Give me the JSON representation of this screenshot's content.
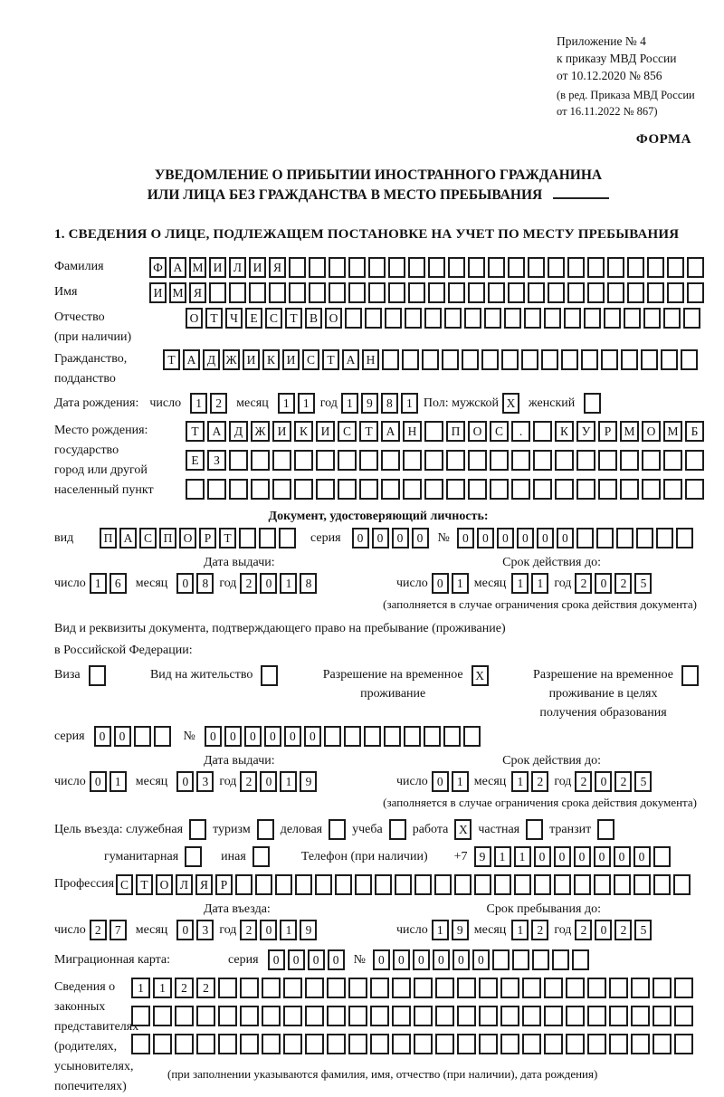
{
  "meta": {
    "annex_lines": [
      "Приложение № 4",
      "к приказу МВД России",
      "от 10.12.2020 № 856"
    ],
    "edition_lines": [
      "(в ред. Приказа МВД России",
      "от 16.11.2022 № 867)"
    ],
    "forma": "ФОРМА"
  },
  "title": {
    "line1": "УВЕДОМЛЕНИЕ О ПРИБЫТИИ ИНОСТРАННОГО ГРАЖДАНИНА",
    "line2": "ИЛИ ЛИЦА БЕЗ ГРАЖДАНСТВА В МЕСТО ПРЕБЫВАНИЯ"
  },
  "section1_heading": "1. СВЕДЕНИЯ О ЛИЦЕ, ПОДЛЕЖАЩЕМ ПОСТАНОВКЕ НА УЧЕТ ПО МЕСТУ ПРЕБЫВАНИЯ",
  "labels": {
    "surname": "Фамилия",
    "name": "Имя",
    "patronymic": "Отчество",
    "patronymic2": "(при наличии)",
    "citizenship1": "Гражданство,",
    "citizenship2": "подданство",
    "birth_date": "Дата рождения:",
    "day": "число",
    "month": "месяц",
    "year": "год",
    "sex_male": "Пол: мужской",
    "sex_female": "женский",
    "birth_place": [
      "Место рождения:",
      "государство",
      "город или другой",
      "населенный пункт"
    ],
    "identity_doc": "Документ, удостоверяющий личность:",
    "doc_type": "вид",
    "series": "серия",
    "number": "№",
    "issue_date": "Дата выдачи:",
    "valid_until": "Срок действия до:",
    "valid_note": "(заполняется в случае ограничения срока действия документа)",
    "residence_line1": "Вид и реквизиты документа, подтверждающего право на пребывание (проживание)",
    "residence_line2": "в Российской Федерации:",
    "visa": "Виза",
    "residence_permit": "Вид на жительство",
    "temp_permit": [
      "Разрешение на временное",
      "проживание"
    ],
    "temp_permit_edu": [
      "Разрешение на временное",
      "проживание в целях",
      "получения образования"
    ],
    "purpose": "Цель въезда: служебная",
    "tourism": "туризм",
    "business": "деловая",
    "study": "учеба",
    "work": "работа",
    "private": "частная",
    "transit": "транзит",
    "humanitarian": "гуманитарная",
    "other": "иная",
    "phone": "Телефон (при наличии)",
    "phone_prefix": "+7",
    "profession": "Профессия",
    "entry_date": "Дата въезда:",
    "stay_until": "Срок пребывания до:",
    "migration_card": "Миграционная карта:",
    "representatives": [
      "Сведения о",
      "законных",
      "представителях",
      "(родителях,",
      "усыновителях,",
      "попечителях)"
    ],
    "representatives_note": "(при заполнении указываются фамилия, имя, отчество (при наличии), дата рождения)"
  },
  "cells": {
    "surname": [
      "Ф",
      "А",
      "М",
      "И",
      "Л",
      "И",
      "Я",
      "",
      "",
      "",
      "",
      "",
      "",
      "",
      "",
      "",
      "",
      "",
      "",
      "",
      "",
      "",
      "",
      "",
      "",
      "",
      "",
      ""
    ],
    "name": [
      "И",
      "М",
      "Я",
      "",
      "",
      "",
      "",
      "",
      "",
      "",
      "",
      "",
      "",
      "",
      "",
      "",
      "",
      "",
      "",
      "",
      "",
      "",
      "",
      "",
      "",
      "",
      "",
      ""
    ],
    "patronymic": [
      "О",
      "Т",
      "Ч",
      "Е",
      "С",
      "Т",
      "В",
      "О",
      "",
      "",
      "",
      "",
      "",
      "",
      "",
      "",
      "",
      "",
      "",
      "",
      "",
      "",
      "",
      "",
      "",
      ""
    ],
    "citizenship": [
      "Т",
      "А",
      "Д",
      "Ж",
      "И",
      "К",
      "И",
      "С",
      "Т",
      "А",
      "Н",
      "",
      "",
      "",
      "",
      "",
      "",
      "",
      "",
      "",
      "",
      "",
      "",
      "",
      "",
      "",
      ""
    ],
    "birth_day": [
      "1",
      "2"
    ],
    "birth_month": [
      "1",
      "1"
    ],
    "birth_year": [
      "1",
      "9",
      "8",
      "1"
    ],
    "sex_male": "X",
    "sex_female": "",
    "birthplace1": [
      "Т",
      "А",
      "Д",
      "Ж",
      "И",
      "К",
      "И",
      "С",
      "Т",
      "А",
      "Н",
      "",
      "П",
      "О",
      "С",
      ".",
      "",
      "К",
      "У",
      "Р",
      "М",
      "О",
      "М",
      "Б"
    ],
    "birthplace2": [
      "Е",
      "З",
      "",
      "",
      "",
      "",
      "",
      "",
      "",
      "",
      "",
      "",
      "",
      "",
      "",
      "",
      "",
      "",
      "",
      "",
      "",
      "",
      "",
      ""
    ],
    "birthplace3": [
      "",
      "",
      "",
      "",
      "",
      "",
      "",
      "",
      "",
      "",
      "",
      "",
      "",
      "",
      "",
      "",
      "",
      "",
      "",
      "",
      "",
      "",
      "",
      ""
    ],
    "doc_type": [
      "П",
      "А",
      "С",
      "П",
      "О",
      "Р",
      "Т",
      "",
      "",
      ""
    ],
    "passport_series": [
      "0",
      "0",
      "0",
      "0"
    ],
    "passport_number": [
      "0",
      "0",
      "0",
      "0",
      "0",
      "0",
      "",
      "",
      "",
      "",
      "",
      ""
    ],
    "passport_issue_day": [
      "1",
      "6"
    ],
    "passport_issue_month": [
      "0",
      "8"
    ],
    "passport_issue_year": [
      "2",
      "0",
      "1",
      "8"
    ],
    "passport_valid_day": [
      "0",
      "1"
    ],
    "passport_valid_month": [
      "1",
      "1"
    ],
    "passport_valid_year": [
      "2",
      "0",
      "2",
      "5"
    ],
    "visa": "",
    "residence_permit": "",
    "temp_permit": "X",
    "temp_permit_edu": "",
    "resid_series": [
      "0",
      "0",
      "",
      ""
    ],
    "resid_number": [
      "0",
      "0",
      "0",
      "0",
      "0",
      "0",
      "",
      "",
      "",
      "",
      "",
      "",
      "",
      ""
    ],
    "resid_issue_day": [
      "0",
      "1"
    ],
    "resid_issue_month": [
      "0",
      "3"
    ],
    "resid_issue_year": [
      "2",
      "0",
      "1",
      "9"
    ],
    "resid_valid_day": [
      "0",
      "1"
    ],
    "resid_valid_month": [
      "1",
      "2"
    ],
    "resid_valid_year": [
      "2",
      "0",
      "2",
      "5"
    ],
    "purpose_official": "",
    "purpose_tourism": "",
    "purpose_business": "",
    "purpose_study": "",
    "purpose_work": "X",
    "purpose_private": "",
    "purpose_transit": "",
    "purpose_humanitarian": "",
    "purpose_other": "",
    "phone": [
      "9",
      "1",
      "1",
      "0",
      "0",
      "0",
      "0",
      "0",
      "0",
      ""
    ],
    "profession": [
      "С",
      "Т",
      "О",
      "Л",
      "Я",
      "Р",
      "",
      "",
      "",
      "",
      "",
      "",
      "",
      "",
      "",
      "",
      "",
      "",
      "",
      "",
      "",
      "",
      "",
      "",
      "",
      "",
      "",
      "",
      ""
    ],
    "entry_day": [
      "2",
      "7"
    ],
    "entry_month": [
      "0",
      "3"
    ],
    "entry_year": [
      "2",
      "0",
      "1",
      "9"
    ],
    "stay_day": [
      "1",
      "9"
    ],
    "stay_month": [
      "1",
      "2"
    ],
    "stay_year": [
      "2",
      "0",
      "2",
      "5"
    ],
    "migr_series": [
      "0",
      "0",
      "0",
      "0"
    ],
    "migr_number": [
      "0",
      "0",
      "0",
      "0",
      "0",
      "0",
      "",
      "",
      "",
      "",
      ""
    ],
    "rep_row1": [
      "1",
      "1",
      "2",
      "2",
      "",
      "",
      "",
      "",
      "",
      "",
      "",
      "",
      "",
      "",
      "",
      "",
      "",
      "",
      "",
      "",
      "",
      "",
      "",
      "",
      "",
      ""
    ],
    "rep_row2": [
      "",
      "",
      "",
      "",
      "",
      "",
      "",
      "",
      "",
      "",
      "",
      "",
      "",
      "",
      "",
      "",
      "",
      "",
      "",
      "",
      "",
      "",
      "",
      "",
      "",
      ""
    ],
    "rep_row3": [
      "",
      "",
      "",
      "",
      "",
      "",
      "",
      "",
      "",
      "",
      "",
      "",
      "",
      "",
      "",
      "",
      "",
      "",
      "",
      "",
      "",
      "",
      "",
      "",
      "",
      ""
    ]
  }
}
